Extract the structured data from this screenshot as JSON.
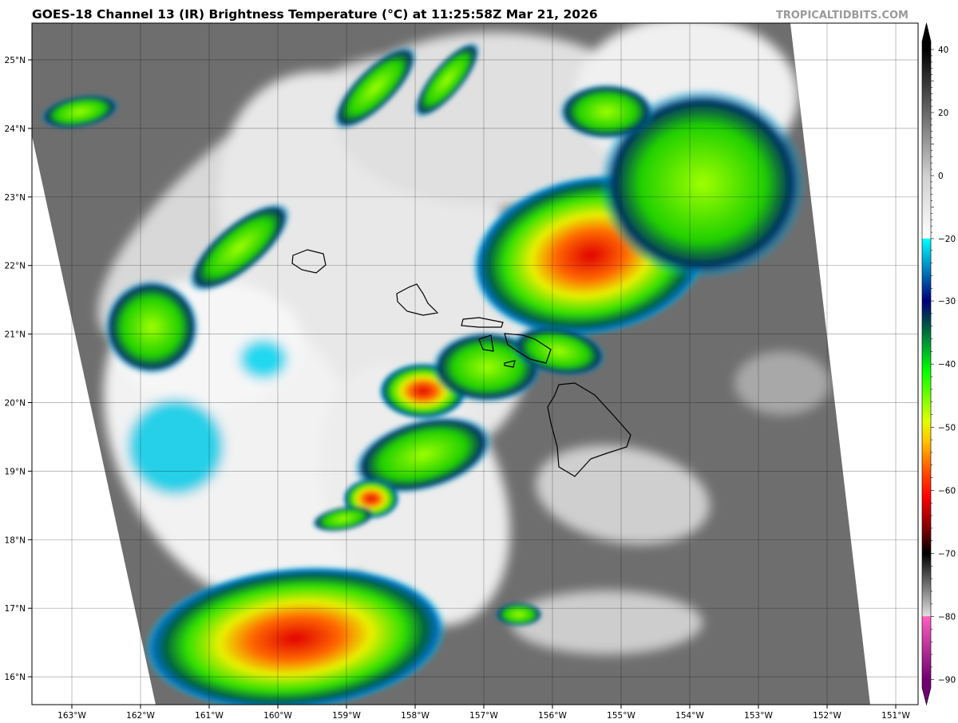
{
  "header": {
    "title": "GOES-18 Channel 13 (IR) Brightness Temperature (°C) at 11:25:58Z Mar 21, 2026",
    "watermark": "TROPICALTIDBITS.COM"
  },
  "map": {
    "longitude_labels": [
      "163°W",
      "162°W",
      "161°W",
      "160°W",
      "159°W",
      "158°W",
      "157°W",
      "156°W",
      "155°W",
      "154°W",
      "153°W",
      "152°W",
      "151°W"
    ],
    "latitude_labels": [
      "25°N",
      "24°N",
      "23°N",
      "22°N",
      "21°N",
      "20°N",
      "19°N",
      "18°N",
      "17°N",
      "16°N"
    ],
    "grid": true,
    "background_color": "#6e6e6e"
  },
  "colorbar": {
    "tick_labels": [
      "40",
      "20",
      "0",
      "−20",
      "−30",
      "−40",
      "−50",
      "−60",
      "−70",
      "−80",
      "−90"
    ],
    "tick_values": [
      40,
      20,
      0,
      -20,
      -30,
      -40,
      -50,
      -60,
      -70,
      -80,
      -90
    ],
    "color_stops": [
      {
        "value": 40,
        "color": "#000000"
      },
      {
        "value": 0,
        "color": "#d0d0d0"
      },
      {
        "value": -19.9,
        "color": "#ffffff"
      },
      {
        "value": -20,
        "color": "#00ffff"
      },
      {
        "value": -25,
        "color": "#0080c0"
      },
      {
        "value": -30,
        "color": "#00007a"
      },
      {
        "value": -33,
        "color": "#004050"
      },
      {
        "value": -37,
        "color": "#00a030"
      },
      {
        "value": -41,
        "color": "#00ff00"
      },
      {
        "value": -49,
        "color": "#e0ff00"
      },
      {
        "value": -52,
        "color": "#ffc800"
      },
      {
        "value": -57,
        "color": "#ff5000"
      },
      {
        "value": -61,
        "color": "#ff0000"
      },
      {
        "value": -66,
        "color": "#800000"
      },
      {
        "value": -70,
        "color": "#000000"
      },
      {
        "value": -79.9,
        "color": "#e0e0e0"
      },
      {
        "value": -80,
        "color": "#ff60c0"
      },
      {
        "value": -90,
        "color": "#700070"
      }
    ]
  }
}
